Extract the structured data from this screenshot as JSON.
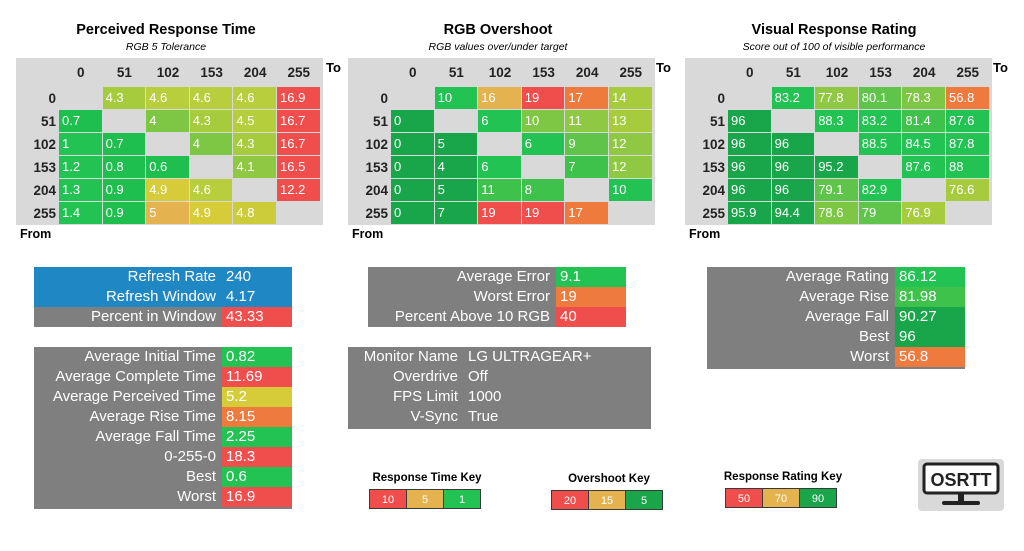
{
  "colors": {
    "panel_gray": "#7f7f7f",
    "heatmap_bg": "#d9d9d9",
    "blue": "#1f87c4",
    "red": "#f04d4d",
    "orange": "#ee7a3e",
    "amber": "#e4b24e",
    "yellow": "#d6cc3a",
    "lime": "#a6cc3e",
    "green": "#22c253",
    "dgreen": "#19a64a"
  },
  "headers": [
    "0",
    "51",
    "102",
    "153",
    "204",
    "255"
  ],
  "to_label": "To",
  "from_label": "From",
  "heatmaps": [
    {
      "title": "Perceived Response Time",
      "subtitle": "RGB 5 Tolerance",
      "rows": [
        [
          "",
          "4.3",
          "4.6",
          "4.6",
          "4.6",
          "16.9"
        ],
        [
          "0.7",
          "",
          "4",
          "4.3",
          "4.5",
          "16.7"
        ],
        [
          "1",
          "0.7",
          "",
          "4",
          "4.3",
          "16.7"
        ],
        [
          "1.2",
          "0.8",
          "0.6",
          "",
          "4.1",
          "16.5"
        ],
        [
          "1.3",
          "0.9",
          "4.9",
          "4.6",
          "",
          "12.2"
        ],
        [
          "1.4",
          "0.9",
          "5",
          "4.9",
          "4.8",
          ""
        ]
      ],
      "colors": [
        [
          "#d9d9d9",
          "#a6cc3e",
          "#b8ce3c",
          "#b8ce3c",
          "#b8ce3c",
          "#f04d4d"
        ],
        [
          "#1ebf4f",
          "#d9d9d9",
          "#7dc745",
          "#a6cc3e",
          "#b5ce3c",
          "#f04d4d"
        ],
        [
          "#22c253",
          "#1ebf4f",
          "#d9d9d9",
          "#7dc745",
          "#a6cc3e",
          "#f04d4d"
        ],
        [
          "#22c253",
          "#1ebf4f",
          "#1ebf4f",
          "#d9d9d9",
          "#8fc943",
          "#f04d4d"
        ],
        [
          "#22c253",
          "#1ebf4f",
          "#d6cc3a",
          "#b8ce3c",
          "#d9d9d9",
          "#f04d4d"
        ],
        [
          "#22c253",
          "#1ebf4f",
          "#e4b24e",
          "#d6cc3a",
          "#cccc3b",
          "#d9d9d9"
        ]
      ]
    },
    {
      "title": "RGB Overshoot",
      "subtitle": "RGB values over/under target",
      "rows": [
        [
          "",
          "10",
          "16",
          "19",
          "17",
          "14"
        ],
        [
          "0",
          "",
          "6",
          "10",
          "11",
          "13"
        ],
        [
          "0",
          "5",
          "",
          "6",
          "9",
          "12"
        ],
        [
          "0",
          "4",
          "6",
          "",
          "7",
          "12"
        ],
        [
          "0",
          "5",
          "11",
          "8",
          "",
          "10"
        ],
        [
          "0",
          "7",
          "19",
          "19",
          "17",
          ""
        ]
      ],
      "colors": [
        [
          "#d9d9d9",
          "#22c253",
          "#e4b24e",
          "#f04d4d",
          "#ee7a3e",
          "#a6cc3e"
        ],
        [
          "#19a64a",
          "#d9d9d9",
          "#22c253",
          "#7dc745",
          "#8fc943",
          "#a6cc3e"
        ],
        [
          "#19a64a",
          "#19a64a",
          "#d9d9d9",
          "#22c253",
          "#5ec44a",
          "#8fc943"
        ],
        [
          "#19a64a",
          "#19a64a",
          "#22c253",
          "#d9d9d9",
          "#3fc24c",
          "#8fc943"
        ],
        [
          "#19a64a",
          "#19a64a",
          "#3fc24c",
          "#3fc24c",
          "#d9d9d9",
          "#22c253"
        ],
        [
          "#19a64a",
          "#19a64a",
          "#f04d4d",
          "#f04d4d",
          "#ee7a3e",
          "#d9d9d9"
        ]
      ]
    },
    {
      "title": "Visual Response Rating",
      "subtitle": "Score out of 100 of visible performance",
      "rows": [
        [
          "",
          "83.2",
          "77.8",
          "80.1",
          "78.3",
          "56.8"
        ],
        [
          "96",
          "",
          "88.3",
          "83.2",
          "81.4",
          "87.6"
        ],
        [
          "96",
          "96",
          "",
          "88.5",
          "84.5",
          "87.8"
        ],
        [
          "96",
          "96",
          "95.2",
          "",
          "87.6",
          "88"
        ],
        [
          "96",
          "96",
          "79.1",
          "82.9",
          "",
          "76.6"
        ],
        [
          "95.9",
          "94.4",
          "78.6",
          "79",
          "76.9",
          ""
        ]
      ],
      "colors": [
        [
          "#d9d9d9",
          "#22c253",
          "#8fc943",
          "#5ec44a",
          "#7dc745",
          "#ee7a3e"
        ],
        [
          "#19a64a",
          "#d9d9d9",
          "#22c253",
          "#22c253",
          "#3fc24c",
          "#22c253"
        ],
        [
          "#19a64a",
          "#19a64a",
          "#d9d9d9",
          "#22c253",
          "#22c253",
          "#22c253"
        ],
        [
          "#19a64a",
          "#19a64a",
          "#19a64a",
          "#d9d9d9",
          "#22c253",
          "#22c253"
        ],
        [
          "#19a64a",
          "#19a64a",
          "#5ec44a",
          "#22c253",
          "#d9d9d9",
          "#a6cc3e"
        ],
        [
          "#19a64a",
          "#19a64a",
          "#7dc745",
          "#5ec44a",
          "#a6cc3e",
          "#d9d9d9"
        ]
      ]
    }
  ],
  "refresh_panel": [
    {
      "label": "Refresh Rate",
      "value": "240",
      "bg": "#1f87c4",
      "vbg": "#1f87c4"
    },
    {
      "label": "Refresh Window",
      "value": "4.17",
      "bg": "#1f87c4",
      "vbg": "#1f87c4"
    },
    {
      "label": "Percent in Window",
      "value": "43.33",
      "bg": "#7f7f7f",
      "vbg": "#f04d4d"
    }
  ],
  "error_panel": [
    {
      "label": "Average Error",
      "value": "9.1",
      "vbg": "#22c253"
    },
    {
      "label": "Worst Error",
      "value": "19",
      "vbg": "#ee7a3e"
    },
    {
      "label": "Percent Above 10 RGB",
      "value": "40",
      "vbg": "#f04d4d"
    }
  ],
  "rating_panel": [
    {
      "label": "Average Rating",
      "value": "86.12",
      "vbg": "#22c253"
    },
    {
      "label": "Average Rise",
      "value": "81.98",
      "vbg": "#3fc24c"
    },
    {
      "label": "Average Fall",
      "value": "90.27",
      "vbg": "#19a64a"
    },
    {
      "label": "Best",
      "value": "96",
      "vbg": "#19a64a"
    },
    {
      "label": "Worst",
      "value": "56.8",
      "vbg": "#ee7a3e"
    }
  ],
  "times_panel": [
    {
      "label": "Average Initial Time",
      "value": "0.82",
      "vbg": "#22c253"
    },
    {
      "label": "Average Complete Time",
      "value": "11.69",
      "vbg": "#f04d4d"
    },
    {
      "label": "Average Perceived Time",
      "value": "5.2",
      "vbg": "#d6cc3a"
    },
    {
      "label": "Average Rise Time",
      "value": "8.15",
      "vbg": "#ee7a3e"
    },
    {
      "label": "Average Fall Time",
      "value": "2.25",
      "vbg": "#22c253"
    },
    {
      "label": "0-255-0",
      "value": "18.3",
      "vbg": "#f04d4d"
    },
    {
      "label": "Best",
      "value": "0.6",
      "vbg": "#22c253"
    },
    {
      "label": "Worst",
      "value": "16.9",
      "vbg": "#f04d4d"
    }
  ],
  "monitor_panel": [
    {
      "label": "Monitor Name",
      "value": "LG ULTRAGEAR+"
    },
    {
      "label": "Overdrive",
      "value": "Off"
    },
    {
      "label": "FPS Limit",
      "value": "1000"
    },
    {
      "label": "V-Sync",
      "value": "True"
    }
  ],
  "keys": [
    {
      "title": "Response Time Key",
      "items": [
        {
          "text": "10",
          "bg": "#f04d4d"
        },
        {
          "text": "5",
          "bg": "#e4b24e"
        },
        {
          "text": "1",
          "bg": "#22c253"
        }
      ]
    },
    {
      "title": "Overshoot Key",
      "items": [
        {
          "text": "20",
          "bg": "#f04d4d"
        },
        {
          "text": "15",
          "bg": "#e4b24e"
        },
        {
          "text": "5",
          "bg": "#19a64a"
        }
      ]
    },
    {
      "title": "Response Rating Key",
      "items": [
        {
          "text": "50",
          "bg": "#f04d4d"
        },
        {
          "text": "70",
          "bg": "#e4b24e"
        },
        {
          "text": "90",
          "bg": "#19a64a"
        }
      ]
    }
  ],
  "logo": {
    "text": "OSRTT",
    "icon": "monitor-icon"
  }
}
